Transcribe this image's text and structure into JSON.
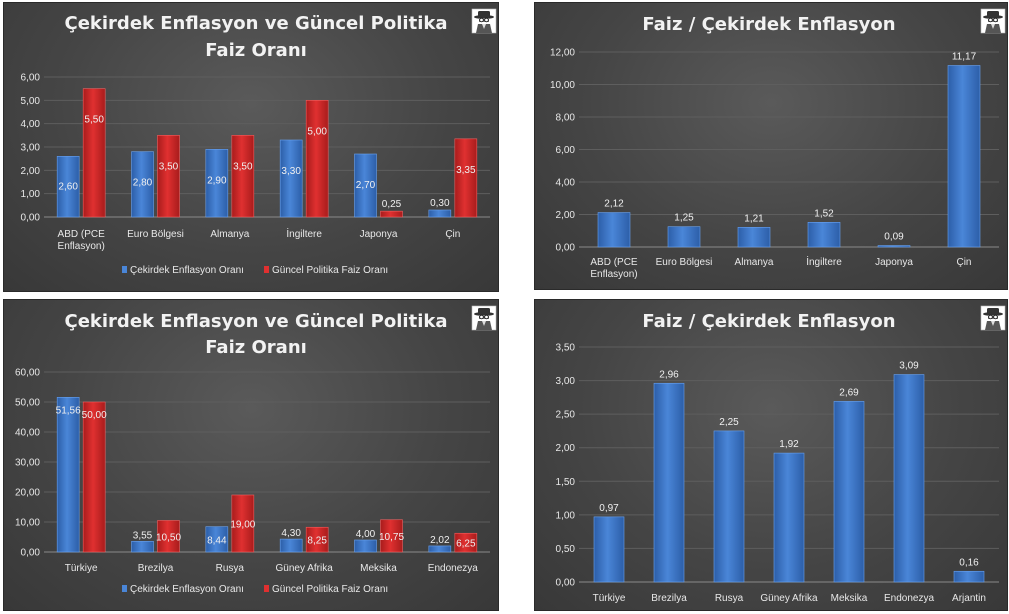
{
  "colors": {
    "blue": "#4a86d8",
    "blue_dark": "#2c5ea8",
    "red": "#e03030",
    "red_dark": "#a81c1c",
    "text": "#e8e8e8",
    "grid": "#5e5e5e"
  },
  "icon": "detective-logo-icon",
  "chart_data": [
    {
      "type": "bar",
      "title_lines": [
        "Çekirdek Enflasyon ve Güncel Politika",
        "Faiz Oranı"
      ],
      "categories": [
        [
          "ABD (PCE",
          "Enflasyon)"
        ],
        [
          "Euro Bölgesi"
        ],
        [
          "Almanya"
        ],
        [
          "İngiltere"
        ],
        [
          "Japonya"
        ],
        [
          "Çin"
        ]
      ],
      "series": [
        {
          "name": "Çekirdek Enflasyon Oranı",
          "values": [
            2.6,
            2.8,
            2.9,
            3.3,
            2.7,
            0.3
          ],
          "labels": [
            "2,60",
            "2,80",
            "2,90",
            "3,30",
            "2,70",
            "0,30"
          ]
        },
        {
          "name": "Güncel Politika Faiz Oranı",
          "values": [
            5.5,
            3.5,
            3.5,
            5.0,
            0.25,
            3.35
          ],
          "labels": [
            "5,50",
            "3,50",
            "3,50",
            "5,00",
            "0,25",
            "3,35"
          ]
        }
      ],
      "ylim": [
        0,
        6
      ],
      "yticks": [
        0,
        1,
        2,
        3,
        4,
        5,
        6
      ],
      "ytick_labels": [
        "0,00",
        "1,00",
        "2,00",
        "3,00",
        "4,00",
        "5,00",
        "6,00"
      ],
      "grid": true,
      "legend": "bottom"
    },
    {
      "type": "bar",
      "title_lines": [
        "Faiz / Çekirdek Enflasyon"
      ],
      "categories": [
        [
          "ABD (PCE",
          "Enflasyon)"
        ],
        [
          "Euro Bölgesi"
        ],
        [
          "Almanya"
        ],
        [
          "İngiltere"
        ],
        [
          "Japonya"
        ],
        [
          "Çin"
        ]
      ],
      "series": [
        {
          "name": "Faiz / Çekirdek Enflasyon",
          "values": [
            2.12,
            1.25,
            1.21,
            1.52,
            0.09,
            11.17
          ],
          "labels": [
            "2,12",
            "1,25",
            "1,21",
            "1,52",
            "0,09",
            "11,17"
          ]
        }
      ],
      "ylim": [
        0,
        12
      ],
      "yticks": [
        0,
        2,
        4,
        6,
        8,
        10,
        12
      ],
      "ytick_labels": [
        "0,00",
        "2,00",
        "4,00",
        "6,00",
        "8,00",
        "10,00",
        "12,00"
      ],
      "grid": true,
      "legend": "none"
    },
    {
      "type": "bar",
      "title_lines": [
        "Çekirdek Enflasyon ve Güncel Politika",
        "Faiz Oranı"
      ],
      "categories": [
        [
          "Türkiye"
        ],
        [
          "Brezilya"
        ],
        [
          "Rusya"
        ],
        [
          "Güney Afrika"
        ],
        [
          "Meksika"
        ],
        [
          "Endonezya"
        ]
      ],
      "series": [
        {
          "name": "Çekirdek Enflasyon Oranı",
          "values": [
            51.56,
            3.55,
            8.44,
            4.3,
            4.0,
            2.02
          ],
          "labels": [
            "51,56",
            "3,55",
            "8,44",
            "4,30",
            "4,00",
            "2,02"
          ]
        },
        {
          "name": "Güncel Politika Faiz Oranı",
          "values": [
            50.0,
            10.5,
            19.0,
            8.25,
            10.75,
            6.25
          ],
          "labels": [
            "50,00",
            "10,50",
            "19,00",
            "8,25",
            "10,75",
            "6,25"
          ]
        }
      ],
      "ylim": [
        0,
        60
      ],
      "yticks": [
        0,
        10,
        20,
        30,
        40,
        50,
        60
      ],
      "ytick_labels": [
        "0,00",
        "10,00",
        "20,00",
        "30,00",
        "40,00",
        "50,00",
        "60,00"
      ],
      "grid": true,
      "legend": "bottom"
    },
    {
      "type": "bar",
      "title_lines": [
        "Faiz / Çekirdek Enflasyon"
      ],
      "categories": [
        [
          "Türkiye"
        ],
        [
          "Brezilya"
        ],
        [
          "Rusya"
        ],
        [
          "Güney Afrika"
        ],
        [
          "Meksika"
        ],
        [
          "Endonezya"
        ],
        [
          "Arjantin"
        ]
      ],
      "series": [
        {
          "name": "Faiz / Çekirdek Enflasyon",
          "values": [
            0.97,
            2.96,
            2.25,
            1.92,
            2.69,
            3.09,
            0.16
          ],
          "labels": [
            "0,97",
            "2,96",
            "2,25",
            "1,92",
            "2,69",
            "3,09",
            "0,16"
          ]
        }
      ],
      "ylim": [
        0,
        3.5
      ],
      "yticks": [
        0,
        0.5,
        1,
        1.5,
        2,
        2.5,
        3,
        3.5
      ],
      "ytick_labels": [
        "0,00",
        "0,50",
        "1,00",
        "1,50",
        "2,00",
        "2,50",
        "3,00",
        "3,50"
      ],
      "grid": true,
      "legend": "none"
    }
  ]
}
